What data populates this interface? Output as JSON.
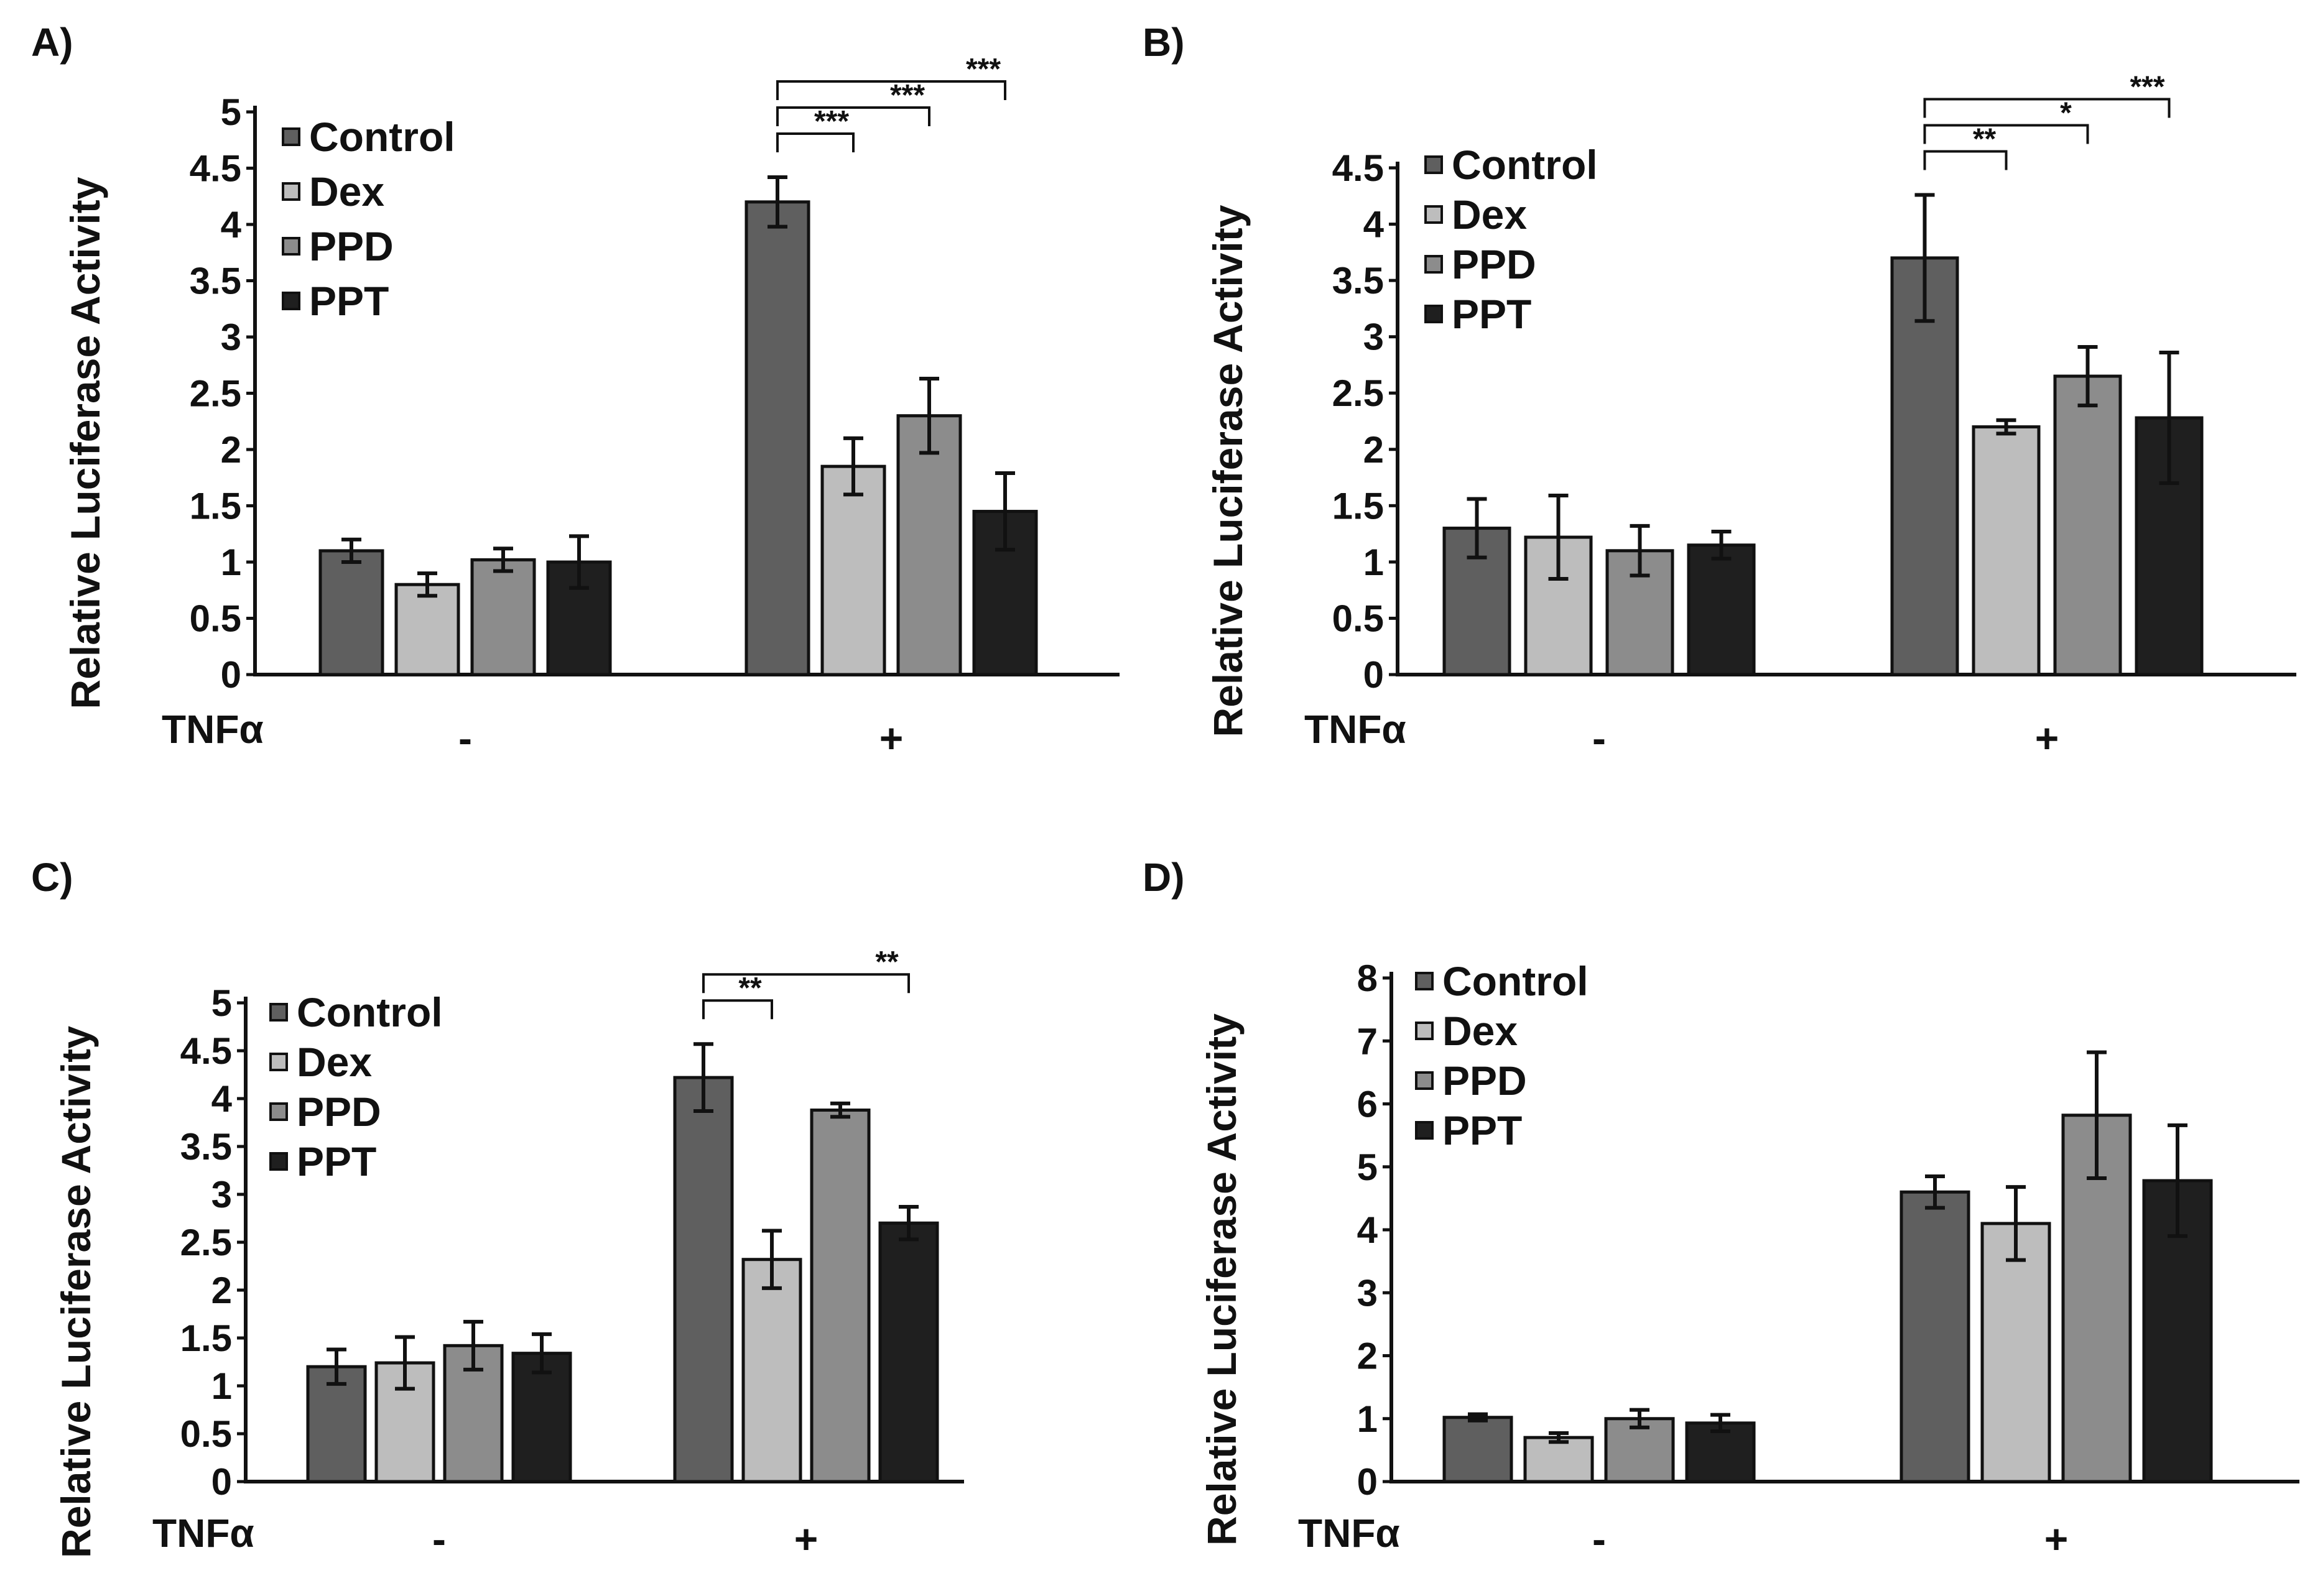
{
  "chart_data": [
    {
      "panel_label": "A)",
      "type": "bar",
      "ylabel": "Relative Luciferase Activity",
      "ylim": [
        0,
        5
      ],
      "yticks": [
        "0",
        "0.5",
        "1",
        "1.5",
        "2",
        "2.5",
        "3",
        "3.5",
        "4",
        "4.5",
        "5"
      ],
      "condition_label": "TNFα",
      "groups": [
        "-",
        "+"
      ],
      "legend_position": "top-left",
      "series": [
        {
          "name": "Control",
          "values": [
            1.1,
            4.2
          ],
          "errors": [
            0.1,
            0.22
          ]
        },
        {
          "name": "Dex",
          "values": [
            0.8,
            1.85
          ],
          "errors": [
            0.1,
            0.25
          ]
        },
        {
          "name": "PPD",
          "values": [
            1.02,
            2.3
          ],
          "errors": [
            0.1,
            0.33
          ]
        },
        {
          "name": "PPT",
          "values": [
            1.0,
            1.45
          ],
          "errors": [
            0.23,
            0.34
          ]
        }
      ],
      "significance": [
        {
          "from": "Control",
          "to": "Dex",
          "group": "+",
          "label": "***"
        },
        {
          "from": "Control",
          "to": "PPD",
          "group": "+",
          "label": "***"
        },
        {
          "from": "Control",
          "to": "PPT",
          "group": "+",
          "label": "***"
        }
      ]
    },
    {
      "panel_label": "B)",
      "type": "bar",
      "ylabel": "Relative Luciferase Activity",
      "ylim": [
        0,
        4.5
      ],
      "yticks": [
        "0",
        "0.5",
        "1",
        "1.5",
        "2",
        "2.5",
        "3",
        "3.5",
        "4",
        "4.5"
      ],
      "condition_label": "TNFα",
      "groups": [
        "-",
        "+"
      ],
      "legend_position": "top-left",
      "series": [
        {
          "name": "Control",
          "values": [
            1.3,
            3.7
          ],
          "errors": [
            0.26,
            0.56
          ]
        },
        {
          "name": "Dex",
          "values": [
            1.22,
            2.2
          ],
          "errors": [
            0.37,
            0.06
          ]
        },
        {
          "name": "PPD",
          "values": [
            1.1,
            2.65
          ],
          "errors": [
            0.22,
            0.26
          ]
        },
        {
          "name": "PPT",
          "values": [
            1.15,
            2.28
          ],
          "errors": [
            0.12,
            0.58
          ]
        }
      ],
      "significance": [
        {
          "from": "Control",
          "to": "Dex",
          "group": "+",
          "label": "**"
        },
        {
          "from": "Control",
          "to": "PPD",
          "group": "+",
          "label": "*"
        },
        {
          "from": "Control",
          "to": "PPT",
          "group": "+",
          "label": "***"
        }
      ]
    },
    {
      "panel_label": "C)",
      "type": "bar",
      "ylabel": "Relative Luciferase Activity",
      "ylim": [
        0,
        5
      ],
      "yticks": [
        "0",
        "0.5",
        "1",
        "1.5",
        "2",
        "2.5",
        "3",
        "3.5",
        "4",
        "4.5",
        "5"
      ],
      "condition_label": "TNFα",
      "groups": [
        "-",
        "+"
      ],
      "legend_position": "top-left",
      "series": [
        {
          "name": "Control",
          "values": [
            1.2,
            4.22
          ],
          "errors": [
            0.18,
            0.35
          ]
        },
        {
          "name": "Dex",
          "values": [
            1.24,
            2.32
          ],
          "errors": [
            0.27,
            0.3
          ]
        },
        {
          "name": "PPD",
          "values": [
            1.42,
            3.88
          ],
          "errors": [
            0.25,
            0.07
          ]
        },
        {
          "name": "PPT",
          "values": [
            1.34,
            2.7
          ],
          "errors": [
            0.2,
            0.17
          ]
        }
      ],
      "significance": [
        {
          "from": "Control",
          "to": "Dex",
          "group": "+",
          "label": "**"
        },
        {
          "from": "Control",
          "to": "PPT",
          "group": "+",
          "label": "**"
        }
      ]
    },
    {
      "panel_label": "D)",
      "type": "bar",
      "ylabel": "Relative Luciferase Activity",
      "ylim": [
        0,
        8
      ],
      "yticks": [
        "0",
        "1",
        "2",
        "3",
        "4",
        "5",
        "6",
        "7",
        "8"
      ],
      "condition_label": "TNFα",
      "groups": [
        "-",
        "+"
      ],
      "legend_position": "top-left",
      "series": [
        {
          "name": "Control",
          "values": [
            1.02,
            4.6
          ],
          "errors": [
            0.05,
            0.25
          ]
        },
        {
          "name": "Dex",
          "values": [
            0.7,
            4.1
          ],
          "errors": [
            0.07,
            0.58
          ]
        },
        {
          "name": "PPD",
          "values": [
            1.0,
            5.82
          ],
          "errors": [
            0.14,
            1.0
          ]
        },
        {
          "name": "PPT",
          "values": [
            0.93,
            4.78
          ],
          "errors": [
            0.13,
            0.88
          ]
        }
      ],
      "significance": []
    }
  ],
  "colors": {
    "Control": "#5f5f5f",
    "Dex": "#bdbdbd",
    "PPD": "#8c8c8c",
    "PPT": "#1f1f1f"
  }
}
